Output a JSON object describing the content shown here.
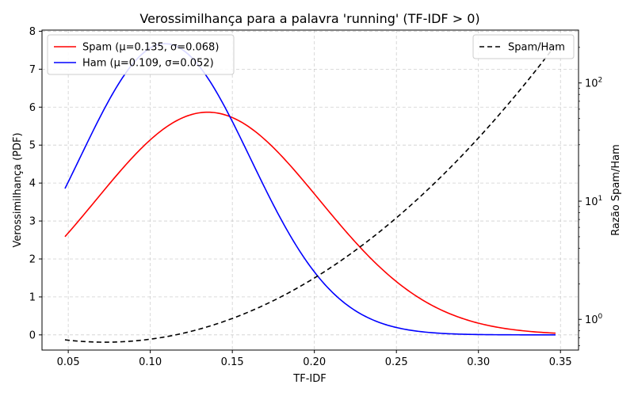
{
  "chart_data": {
    "type": "line",
    "title": "Verossimilhança para a palavra 'running' (TF-IDF > 0)",
    "xlabel": "TF-IDF",
    "ylabel_left": "Verossimilhança (PDF)",
    "ylabel_right": "Razão Spam/Ham",
    "xlim": [
      0.034,
      0.361
    ],
    "ylim_left": [
      -0.4,
      8.03
    ],
    "ylim_right": [
      0.55,
      280
    ],
    "right_scale": "log",
    "x_ticks": [
      0.05,
      0.1,
      0.15,
      0.2,
      0.25,
      0.3,
      0.35
    ],
    "x_tick_labels": [
      "0.05",
      "0.10",
      "0.15",
      "0.20",
      "0.25",
      "0.30",
      "0.35"
    ],
    "y_left_ticks": [
      0,
      1,
      2,
      3,
      4,
      5,
      6,
      7,
      8
    ],
    "y_left_tick_labels": [
      "0",
      "1",
      "2",
      "3",
      "4",
      "5",
      "6",
      "7",
      "8"
    ],
    "y_right_major_ticks": [
      1,
      10,
      100
    ],
    "y_right_tick_labels": [
      {
        "base": "10",
        "exp": "0"
      },
      {
        "base": "10",
        "exp": "1"
      },
      {
        "base": "10",
        "exp": "2"
      }
    ],
    "grid": true,
    "x_range": [
      0.048,
      0.347
    ],
    "series": [
      {
        "name": "Spam (μ=0.135, σ=0.068)",
        "axis": "left",
        "color": "#ff0000",
        "style": "solid",
        "mu": 0.135,
        "sigma": 0.068
      },
      {
        "name": "Ham (μ=0.109, σ=0.052)",
        "axis": "left",
        "color": "#0000ff",
        "style": "solid",
        "mu": 0.109,
        "sigma": 0.052
      },
      {
        "name": "Spam/Ham",
        "axis": "right",
        "color": "#000000",
        "style": "dashed",
        "ratio_of": [
          0,
          1
        ]
      }
    ],
    "legend_left_position": "upper-left",
    "legend_right_position": "upper-right"
  }
}
